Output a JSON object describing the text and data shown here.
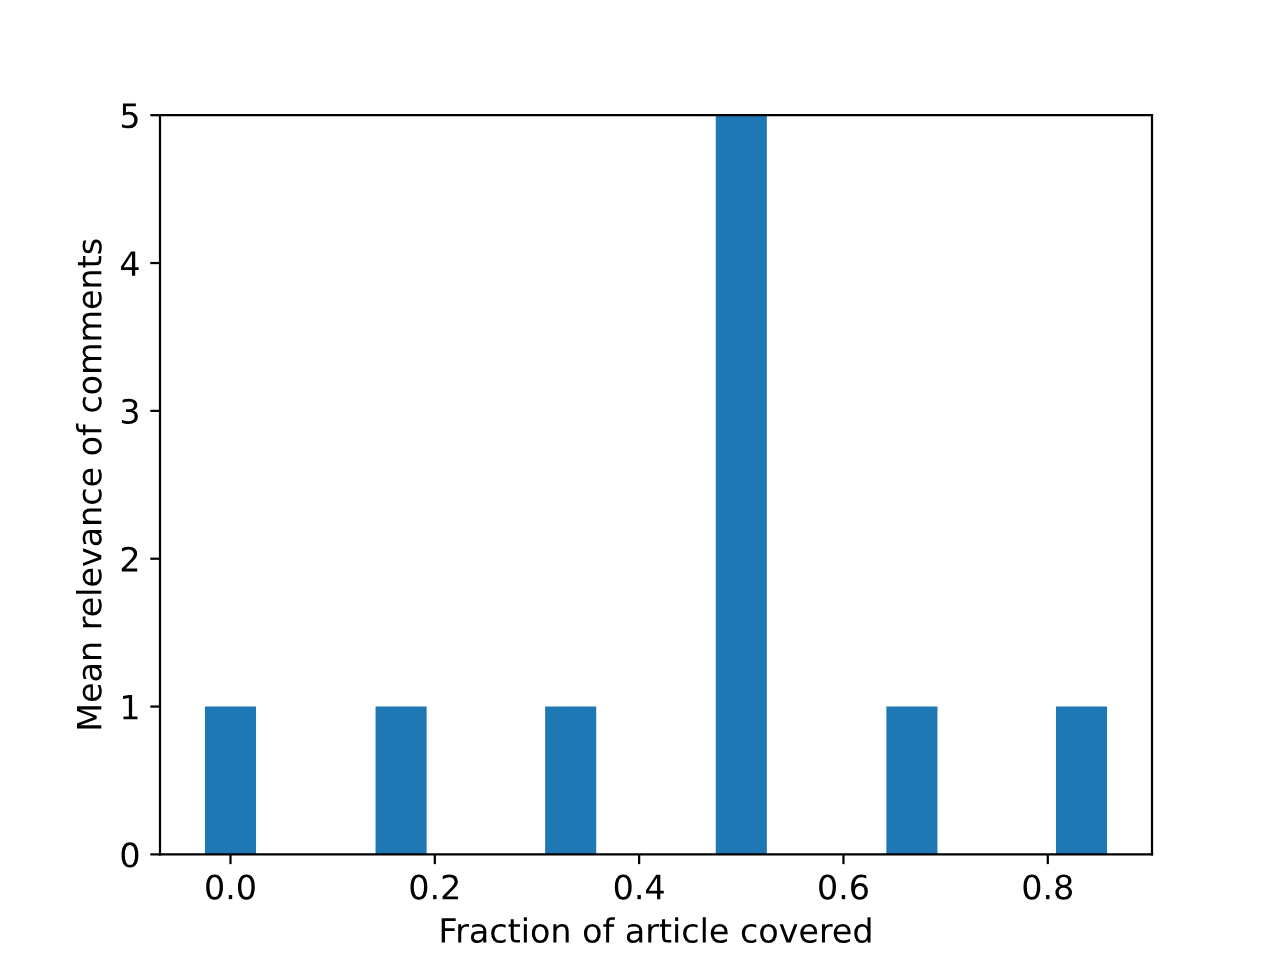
{
  "chart_data": {
    "type": "bar",
    "xlabel": "Fraction of article covered",
    "ylabel": "Mean relevance of comments",
    "x": [
      0,
      0.167,
      0.333,
      0.5,
      0.667,
      0.833
    ],
    "values": [
      1,
      1,
      1,
      5,
      1,
      1
    ],
    "color": "#1f77b4",
    "xlim": [
      -0.069,
      0.902
    ],
    "xticks": [
      {
        "value": 0,
        "label": "0.0"
      },
      0.2,
      0.4,
      0.6,
      0.8
    ],
    "ylim": [
      0,
      5
    ],
    "yticks": [
      0,
      1,
      2,
      3,
      4,
      5
    ]
  }
}
